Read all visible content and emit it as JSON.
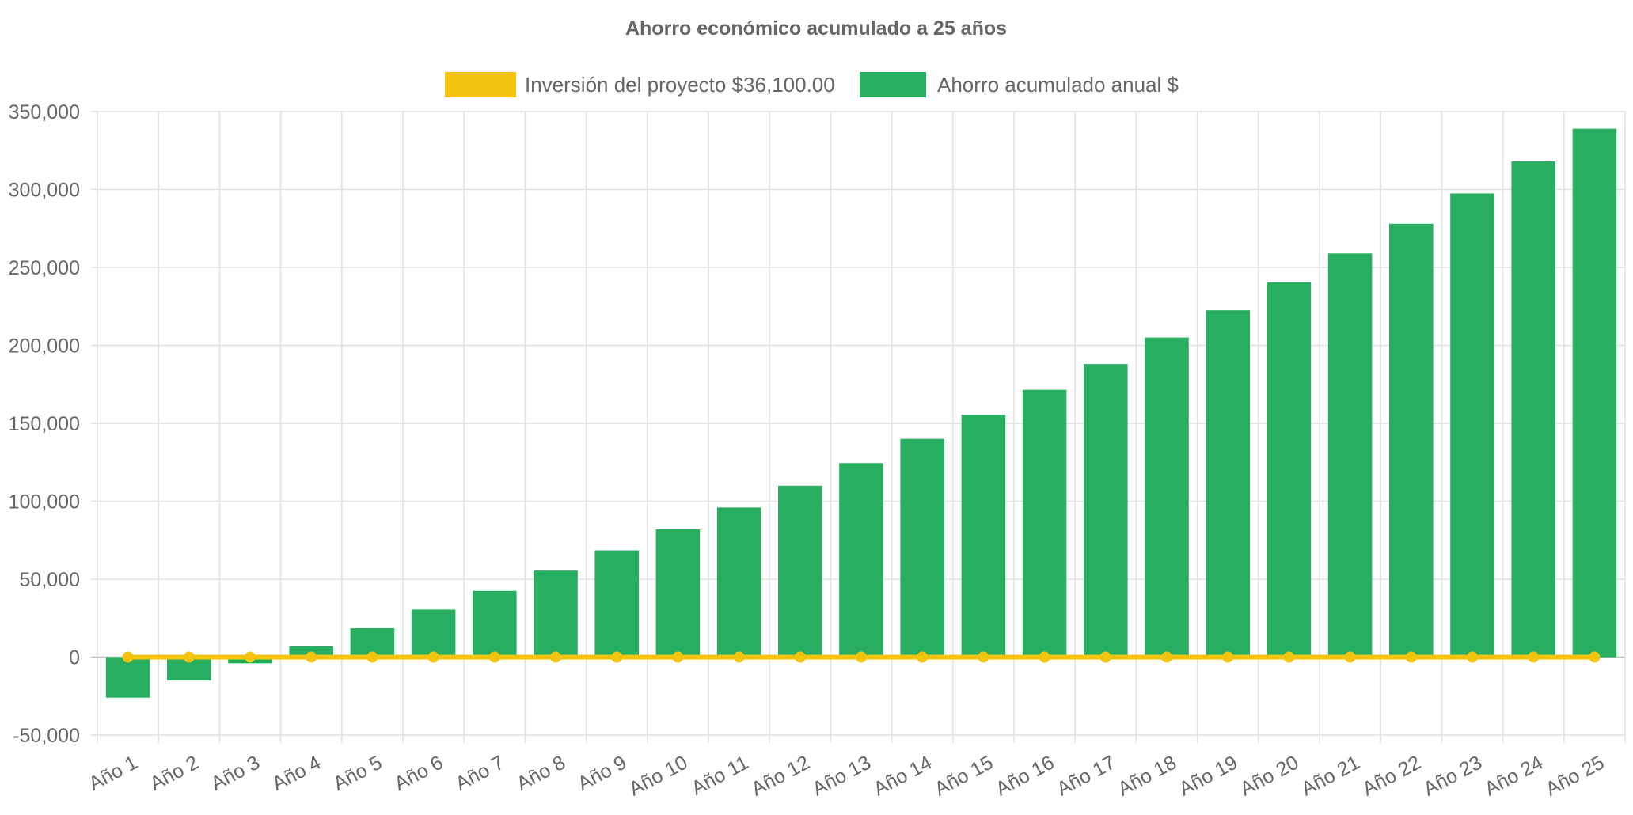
{
  "chart_data": {
    "type": "bar",
    "title": "Ahorro económico acumulado a 25 años",
    "xlabel": "",
    "ylabel": "",
    "ylim": [
      -50000,
      350000
    ],
    "ytick_step": 50000,
    "grid": true,
    "legend_position": "top-center",
    "categories": [
      "Año 1",
      "Año 2",
      "Año 3",
      "Año 4",
      "Año 5",
      "Año 6",
      "Año 7",
      "Año 8",
      "Año 9",
      "Año 10",
      "Año 11",
      "Año 12",
      "Año 13",
      "Año 14",
      "Año 15",
      "Año 16",
      "Año 17",
      "Año 18",
      "Año 19",
      "Año 20",
      "Año 21",
      "Año 22",
      "Año 23",
      "Año 24",
      "Año 25"
    ],
    "series": [
      {
        "name": "Inversión del proyecto $36,100.00",
        "kind": "line",
        "color": "#f2c40f",
        "values": [
          0,
          0,
          0,
          0,
          0,
          0,
          0,
          0,
          0,
          0,
          0,
          0,
          0,
          0,
          0,
          0,
          0,
          0,
          0,
          0,
          0,
          0,
          0,
          0,
          0
        ]
      },
      {
        "name": "Ahorro acumulado anual $",
        "kind": "bar",
        "color": "#27ae60",
        "values": [
          -26000,
          -15000,
          -4000,
          7000,
          18500,
          30500,
          42500,
          55500,
          68500,
          82000,
          96000,
          110000,
          124500,
          140000,
          155500,
          171500,
          188000,
          205000,
          222500,
          240500,
          259000,
          278000,
          297500,
          318000,
          339000
        ]
      }
    ]
  }
}
